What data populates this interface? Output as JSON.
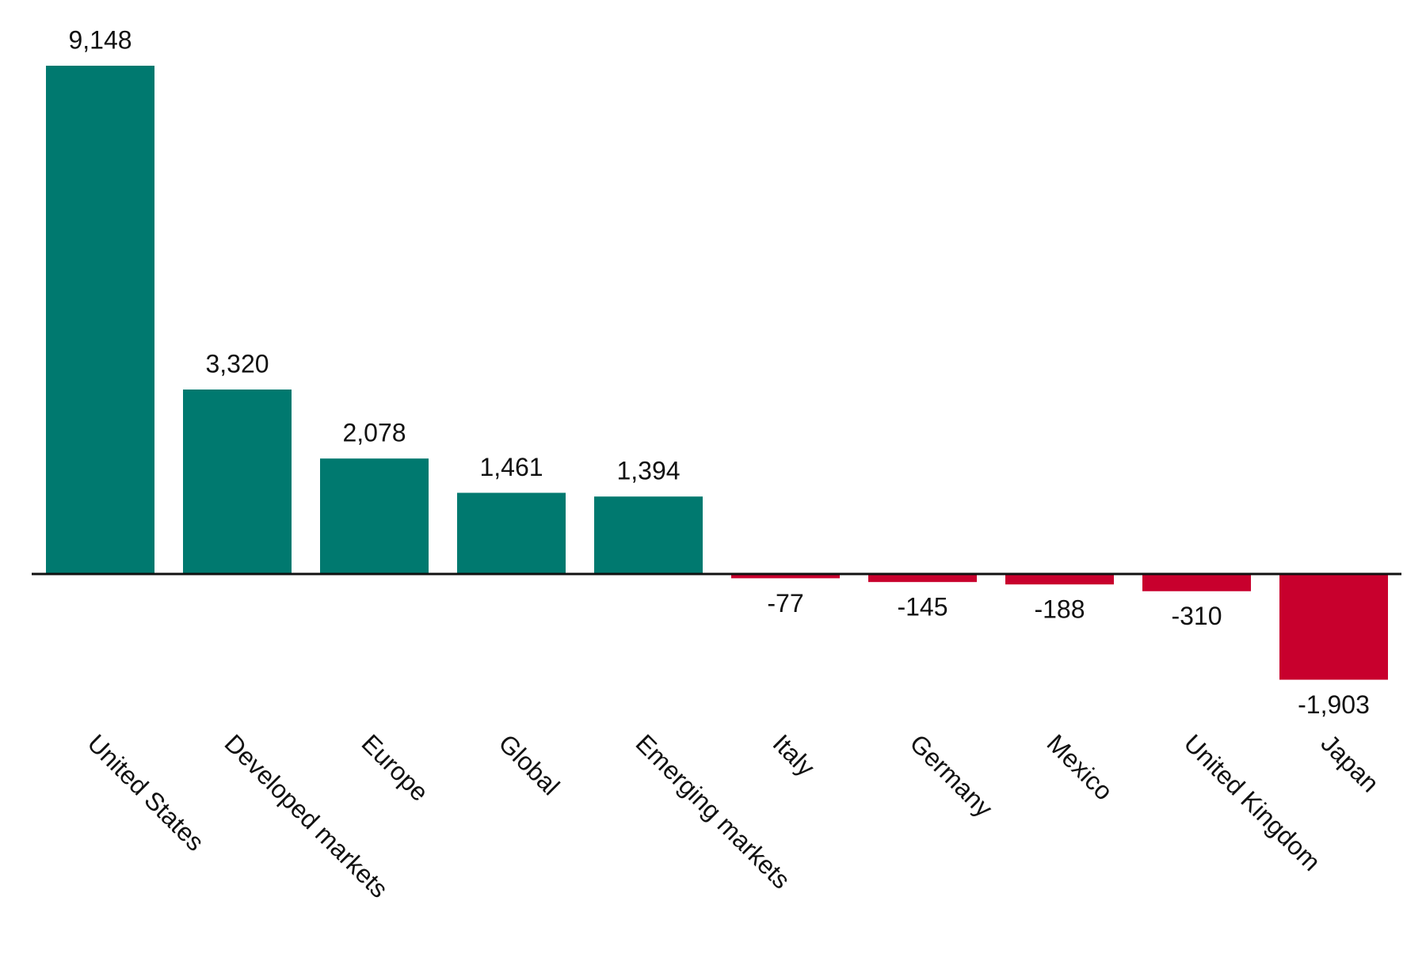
{
  "chart_data": {
    "type": "bar",
    "categories": [
      "United States",
      "Developed markets",
      "Europe",
      "Global",
      "Emerging markets",
      "Italy",
      "Germany",
      "Mexico",
      "United Kingdom",
      "Japan"
    ],
    "values": [
      9148,
      3320,
      2078,
      1461,
      1394,
      -77,
      -145,
      -188,
      -310,
      -1903
    ],
    "value_labels": [
      "9,148",
      "3,320",
      "2,078",
      "1,461",
      "1,394",
      "-77",
      "-145",
      "-188",
      "-310",
      "-1,903"
    ],
    "colors": [
      "#00796f",
      "#00796f",
      "#00796f",
      "#00796f",
      "#00796f",
      "#c8002d",
      "#c8002d",
      "#c8002d",
      "#c8002d",
      "#c8002d"
    ]
  }
}
